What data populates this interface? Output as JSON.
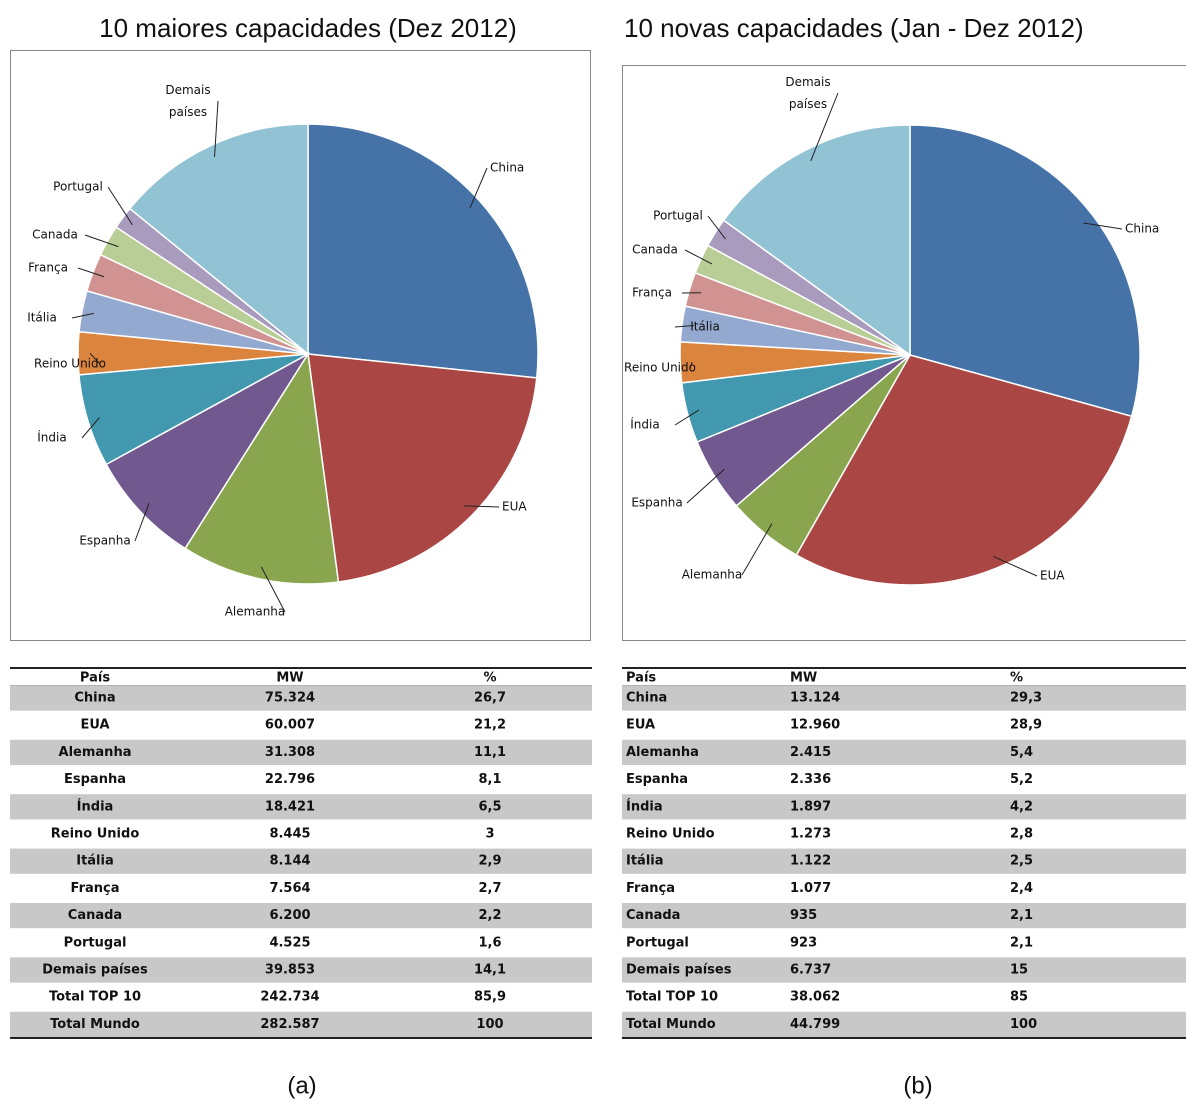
{
  "chart_data": [
    {
      "type": "pie",
      "title": "10 maiores capacidades (Dez 2012)",
      "categories": [
        "China",
        "EUA",
        "Alemanha",
        "Espanha",
        "Índia",
        "Reino Unido",
        "Itália",
        "França",
        "Canada",
        "Portugal",
        "Demais países"
      ],
      "values": [
        75324,
        60007,
        31308,
        22796,
        18421,
        8445,
        8144,
        7564,
        6200,
        4525,
        39853
      ],
      "colors": [
        "#4572a7",
        "#aa4643",
        "#89a54e",
        "#71588f",
        "#4198af",
        "#db843d",
        "#93a9cf",
        "#d19392",
        "#b9cd96",
        "#a99bbd",
        "#92c3d5"
      ]
    },
    {
      "type": "pie",
      "title": "10 novas capacidades (Jan - Dez 2012)",
      "categories": [
        "China",
        "EUA",
        "Alemanha",
        "Espanha",
        "Índia",
        "Reino Unido",
        "Itália",
        "França",
        "Canada",
        "Portugal",
        "Demais países"
      ],
      "values": [
        13124,
        12960,
        2415,
        2336,
        1897,
        1273,
        1122,
        1077,
        935,
        923,
        6737
      ],
      "colors": [
        "#4572a7",
        "#aa4643",
        "#89a54e",
        "#71588f",
        "#4198af",
        "#db843d",
        "#93a9cf",
        "#d19392",
        "#b9cd96",
        "#a99bbd",
        "#92c3d5"
      ]
    }
  ],
  "tables": [
    {
      "header": [
        "País",
        "MW",
        "%"
      ],
      "rows": [
        [
          "China",
          "75.324",
          "26,7"
        ],
        [
          "EUA",
          "60.007",
          "21,2"
        ],
        [
          "Alemanha",
          "31.308",
          "11,1"
        ],
        [
          "Espanha",
          "22.796",
          "8,1"
        ],
        [
          "Índia",
          "18.421",
          "6,5"
        ],
        [
          "Reino Unido",
          "8.445",
          "3"
        ],
        [
          "Itália",
          "8.144",
          "2,9"
        ],
        [
          "França",
          "7.564",
          "2,7"
        ],
        [
          "Canada",
          "6.200",
          "2,2"
        ],
        [
          "Portugal",
          "4.525",
          "1,6"
        ],
        [
          "Demais países",
          "39.853",
          "14,1"
        ],
        [
          "Total TOP 10",
          "242.734",
          "85,9"
        ],
        [
          "Total Mundo",
          "282.587",
          "100"
        ]
      ]
    },
    {
      "header": [
        "País",
        "MW",
        "%"
      ],
      "rows": [
        [
          "China",
          "13.124",
          "29,3"
        ],
        [
          "EUA",
          "12.960",
          "28,9"
        ],
        [
          "Alemanha",
          "2.415",
          "5,4"
        ],
        [
          "Espanha",
          "2.336",
          "5,2"
        ],
        [
          "Índia",
          "1.897",
          "4,2"
        ],
        [
          "Reino Unido",
          "1.273",
          "2,8"
        ],
        [
          "Itália",
          "1.122",
          "2,5"
        ],
        [
          "França",
          "1.077",
          "2,4"
        ],
        [
          "Canada",
          "935",
          "2,1"
        ],
        [
          "Portugal",
          "923",
          "2,1"
        ],
        [
          "Demais países",
          "6.737",
          "15"
        ],
        [
          "Total TOP 10",
          "38.062",
          "85"
        ],
        [
          "Total Mundo",
          "44.799",
          "100"
        ]
      ]
    }
  ],
  "captions": [
    "(a)",
    "(b)"
  ]
}
